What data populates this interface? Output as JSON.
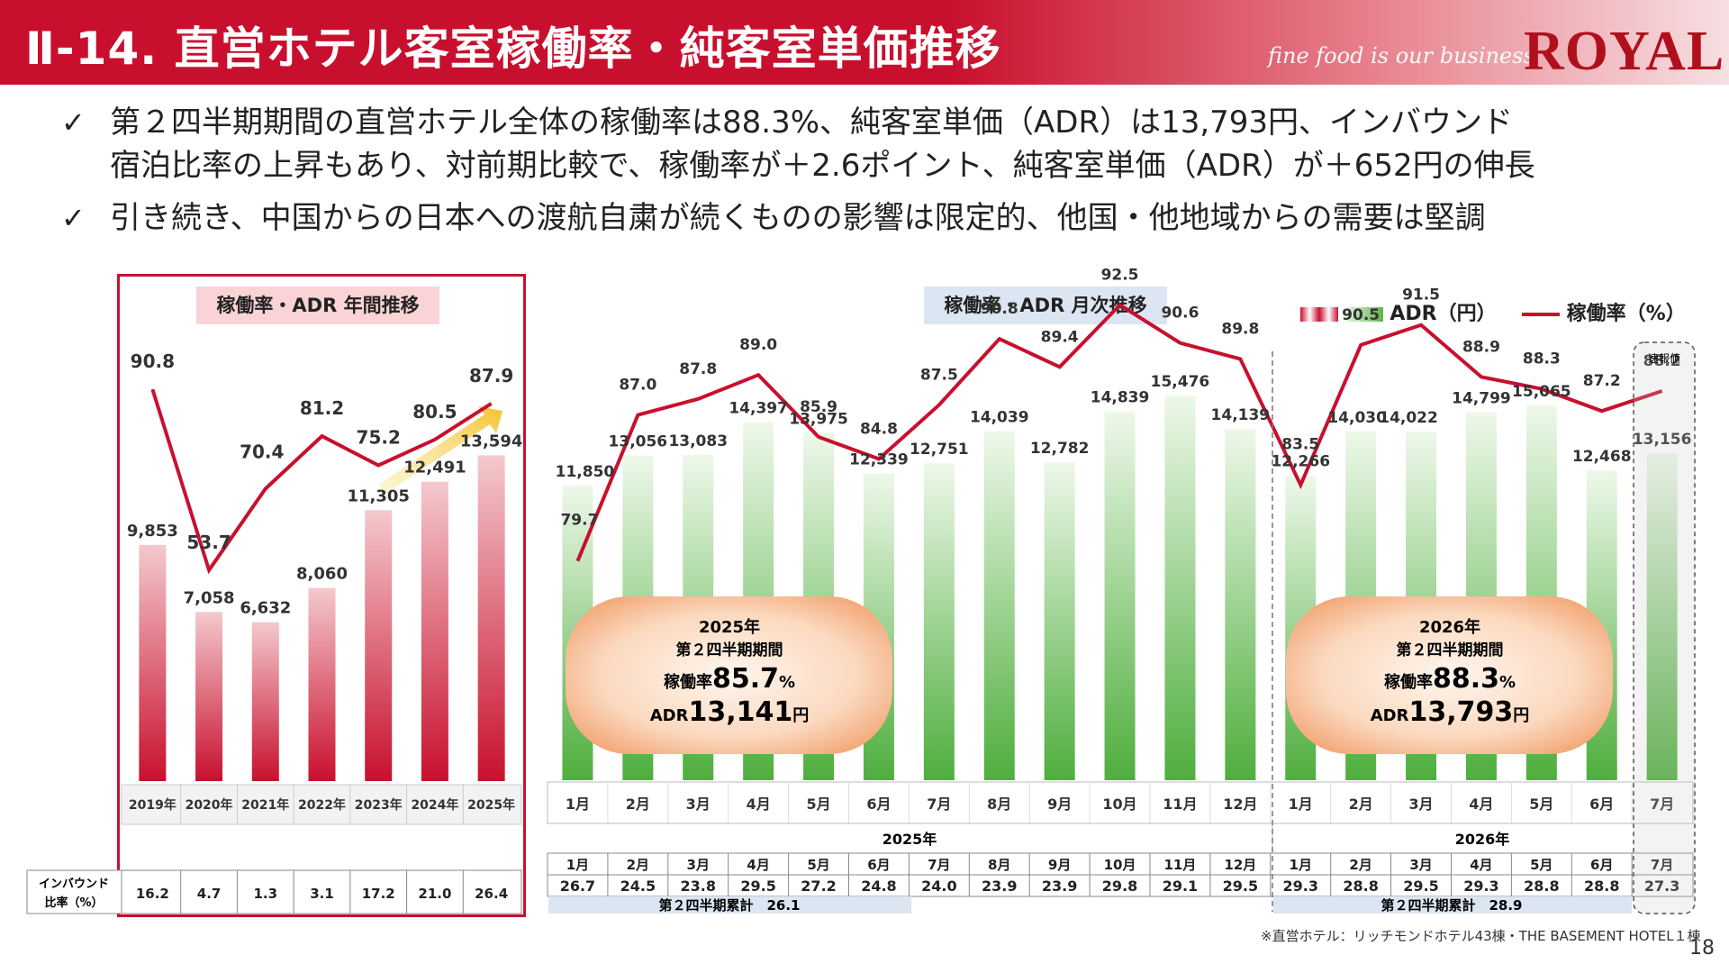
{
  "header": {
    "title": "Ⅱ-14. 直営ホテル客室稼働率・純客室単価推移",
    "tagline": "fine food is our business",
    "logo": "ROYAL"
  },
  "bullets": [
    "第２四半期期間の直営ホテル全体の稼働率は88.3%、純客室単価（ADR）は13,793円、インバウンド",
    "宿泊比率の上昇もあり、対前期比較で、稼働率が＋2.6ポイント、純客室単価（ADR）が＋652円の伸長",
    "引き続き、中国からの日本への渡航自粛が続くものの影響は限定的、他国・他地域からの需要は堅調"
  ],
  "check_icon": "✓",
  "annual": {
    "pill": "稼働率・ADR 年間推移",
    "inbound_label_1": "インバウンド",
    "inbound_label_2": "比率（%）"
  },
  "monthly": {
    "pill": "稼働率・ADR 月次推移",
    "legend_adr": "ADR（円）",
    "legend_occ": "稼働率（%）",
    "flash_label": "速報値",
    "year_2025": "2025年",
    "year_2026": "2026年",
    "cum_2025": "第２四半期累計　26.1",
    "cum_2026": "第２四半期累計　28.9"
  },
  "bubble_2025": {
    "year": "2025年",
    "period": "第２四半期期間",
    "occ_label": "稼働率",
    "occ_value": "85.7",
    "occ_unit": "%",
    "adr_label": "ADR",
    "adr_value": "13,141",
    "adr_unit": "円"
  },
  "bubble_2026": {
    "year": "2026年",
    "period": "第２四半期期間",
    "occ_label": "稼働率",
    "occ_value": "88.3",
    "occ_unit": "%",
    "adr_label": "ADR",
    "adr_value": "13,793",
    "adr_unit": "円"
  },
  "footnote": "※直営ホテル：リッチモンドホテル43棟・THE BASEMENT HOTEL１棟",
  "page_number": "18",
  "colors": {
    "brand_red": "#c8102e",
    "adr_green": "#5cb548",
    "adr_annual_red": "#c8102e",
    "line_red": "#c8102e"
  },
  "chart_data": [
    {
      "type": "bar",
      "title": "稼働率・ADR 年間推移",
      "categories": [
        "2019年",
        "2020年",
        "2021年",
        "2022年",
        "2023年",
        "2024年",
        "2025年"
      ],
      "series": [
        {
          "name": "ADR（円）",
          "type": "bar",
          "values": [
            9853,
            7058,
            6632,
            8060,
            11305,
            12491,
            13594
          ],
          "labels": [
            "9,853",
            "7,058",
            "6,632",
            "8,060",
            "11,305",
            "12,491",
            "13,594"
          ]
        },
        {
          "name": "稼働率（%）",
          "type": "line",
          "values": [
            90.8,
            53.7,
            70.4,
            81.2,
            75.2,
            80.5,
            87.9
          ],
          "labels": [
            "90.8",
            "53.7",
            "70.4",
            "81.2",
            "75.2",
            "80.5",
            "87.9"
          ]
        },
        {
          "name": "インバウンド比率（%）",
          "type": "table",
          "values": [
            16.2,
            4.7,
            1.3,
            3.1,
            17.2,
            21.0,
            26.4
          ],
          "labels": [
            "16.2",
            "4.7",
            "1.3",
            "3.1",
            "17.2",
            "21.0",
            "26.4"
          ]
        }
      ]
    },
    {
      "type": "bar",
      "title": "稼働率・ADR 月次推移",
      "categories": [
        "1月",
        "2月",
        "3月",
        "4月",
        "5月",
        "6月",
        "7月",
        "8月",
        "9月",
        "10月",
        "11月",
        "12月",
        "1月",
        "2月",
        "3月",
        "4月",
        "5月",
        "6月",
        "7月"
      ],
      "years": [
        "2025年",
        "2026年"
      ],
      "series": [
        {
          "name": "ADR（円）",
          "type": "bar",
          "values": [
            11850,
            13056,
            13083,
            14397,
            13975,
            12339,
            12751,
            14039,
            12782,
            14839,
            15476,
            14139,
            12266,
            14030,
            14022,
            14799,
            15065,
            12468,
            13156
          ],
          "labels": [
            "11,850",
            "13,056",
            "13,083",
            "14,397",
            "13,975",
            "12,339",
            "12,751",
            "14,039",
            "12,782",
            "14,839",
            "15,476",
            "14,139",
            "12,266",
            "14,030",
            "14,022",
            "14,799",
            "15,065",
            "12,468",
            "13,156"
          ]
        },
        {
          "name": "稼働率（%）",
          "type": "line",
          "values": [
            79.7,
            87.0,
            87.8,
            89.0,
            85.9,
            84.8,
            87.5,
            90.8,
            89.4,
            92.5,
            90.6,
            89.8,
            83.5,
            90.5,
            91.5,
            88.9,
            88.3,
            87.2,
            88.2
          ],
          "labels": [
            "79.7",
            "87.0",
            "87.8",
            "89.0",
            "85.9",
            "84.8",
            "87.5",
            "90.8",
            "89.4",
            "92.5",
            "90.6",
            "89.8",
            "83.5",
            "90.5",
            "91.5",
            "88.9",
            "88.3",
            "87.2",
            "88.2"
          ]
        },
        {
          "name": "インバウンド比率（%）",
          "type": "table",
          "values": [
            26.7,
            24.5,
            23.8,
            29.5,
            27.2,
            24.8,
            24.0,
            23.9,
            23.9,
            29.8,
            29.1,
            29.5,
            29.3,
            28.8,
            29.5,
            29.3,
            28.8,
            28.8,
            27.3
          ],
          "labels": [
            "26.7",
            "24.5",
            "23.8",
            "29.5",
            "27.2",
            "24.8",
            "24.0",
            "23.9",
            "23.9",
            "29.8",
            "29.1",
            "29.5",
            "29.3",
            "28.8",
            "29.5",
            "29.3",
            "28.8",
            "28.8",
            "27.3"
          ]
        }
      ]
    }
  ]
}
